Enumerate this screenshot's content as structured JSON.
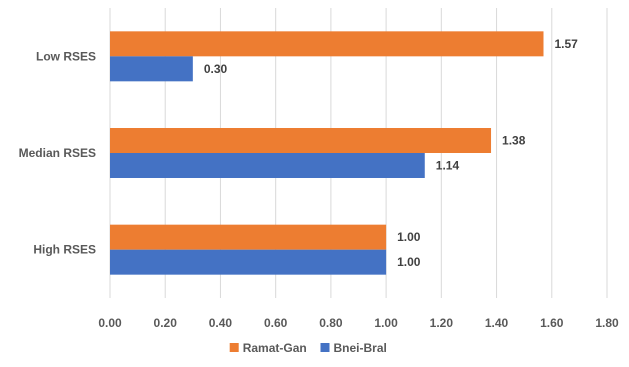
{
  "chart_data": {
    "type": "bar",
    "orientation": "horizontal",
    "categories": [
      "Low RSES",
      "Median RSES",
      "High RSES"
    ],
    "series": [
      {
        "name": "Ramat-Gan",
        "values": [
          1.57,
          1.38,
          1.0
        ],
        "color": "#ED7D31"
      },
      {
        "name": "Bnei-Bral",
        "values": [
          0.3,
          1.14,
          1.0
        ],
        "color": "#4472C4"
      }
    ],
    "data_labels": [
      [
        "1.57",
        "0.30"
      ],
      [
        "1.38",
        "1.14"
      ],
      [
        "1.00",
        "1.00"
      ]
    ],
    "xlim": [
      0,
      1.8
    ],
    "x_ticks": [
      "0.00",
      "0.20",
      "0.40",
      "0.60",
      "0.80",
      "1.00",
      "1.20",
      "1.40",
      "1.60",
      "1.80"
    ],
    "grid": true,
    "legend_position": "bottom"
  }
}
